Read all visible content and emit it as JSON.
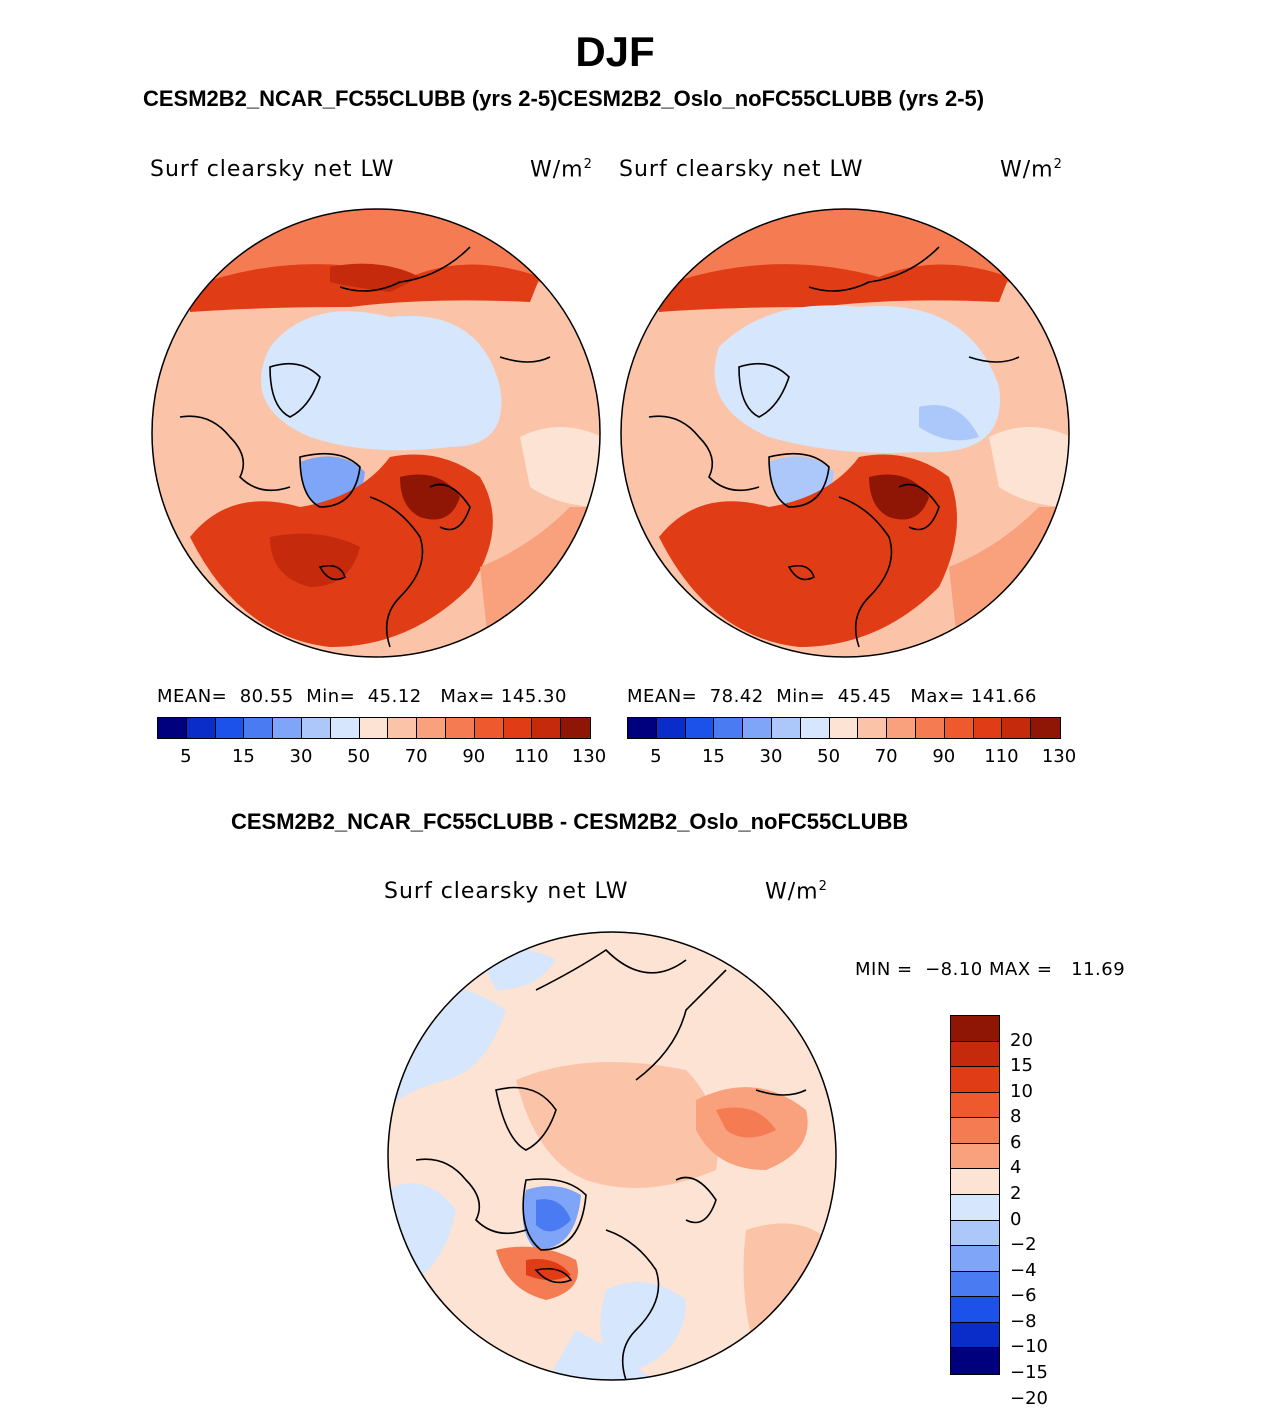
{
  "season": "DJF",
  "case_header": "CESM2B2_NCAR_FC55CLUBB (yrs 2-5)CESM2B2_Oslo_noFC55CLUBB (yrs 2-5)",
  "diff_header": "CESM2B2_NCAR_FC55CLUBB - CESM2B2_Oslo_noFC55CLUBB",
  "panels": [
    {
      "variable": "Surf clearsky net LW",
      "units": "W/m",
      "units_sup": "2",
      "mean_label": "MEAN=",
      "mean": "80.55",
      "min_label": "Min=",
      "min": "45.12",
      "max_label": "Max=",
      "max": "145.30"
    },
    {
      "variable": "Surf clearsky net LW",
      "units": "W/m",
      "units_sup": "2",
      "mean_label": "MEAN=",
      "mean": "78.42",
      "min_label": "Min=",
      "min": "45.45",
      "max_label": "Max=",
      "max": "141.66"
    }
  ],
  "diff_panel": {
    "variable": "Surf clearsky net LW",
    "units": "W/m",
    "units_sup": "2",
    "min_label": "MIN =",
    "min": "−8.10",
    "max_label": "MAX =",
    "max": "11.69"
  },
  "colorbar_abs": {
    "colors": [
      "#00007f",
      "#0a2cc8",
      "#1c52ea",
      "#4a7bf2",
      "#7ea5f8",
      "#acc8fb",
      "#d6e6fc",
      "#fde3d4",
      "#fbc4a8",
      "#f9a07c",
      "#f57c52",
      "#ee5a2e",
      "#e03c15",
      "#c52a0c",
      "#8f1504"
    ],
    "tick_labels": [
      "5",
      "15",
      "30",
      "50",
      "70",
      "90",
      "110",
      "130"
    ]
  },
  "colorbar_diff": {
    "colors": [
      "#8f1504",
      "#c52a0c",
      "#e03c15",
      "#ee5a2e",
      "#f57c52",
      "#f9a07c",
      "#fde3d4",
      "#d6e6fc",
      "#acc8fb",
      "#7ea5f8",
      "#4a7bf2",
      "#1c52ea",
      "#0a2cc8",
      "#00007f"
    ],
    "tick_labels": [
      "20",
      "15",
      "10",
      "8",
      "6",
      "4",
      "2",
      "0",
      "−2",
      "−4",
      "−6",
      "−8",
      "−10",
      "−15",
      "−20"
    ]
  }
}
